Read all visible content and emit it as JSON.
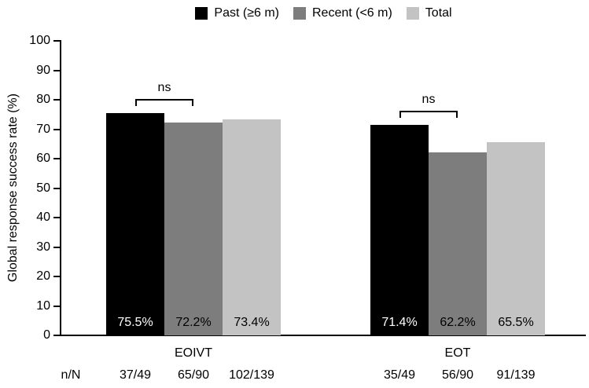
{
  "figure": {
    "background": "#ffffff"
  },
  "legend": {
    "items": [
      {
        "label": "Past (≥6 m)",
        "color": "#000000"
      },
      {
        "label": "Recent (<6 m)",
        "color": "#7d7d7d"
      },
      {
        "label": "Total",
        "color": "#c3c3c3"
      }
    ]
  },
  "chart_data": {
    "type": "bar",
    "title": "",
    "ylabel": "Global response success rate (%)",
    "ylim": [
      0,
      100
    ],
    "ytick_step": 10,
    "grid": false,
    "legend_position": "top",
    "categories": [
      "EOIVT",
      "EOT"
    ],
    "series": [
      {
        "name": "Past (≥6 m)",
        "color": "#000000",
        "label_color": "#ffffff",
        "values": [
          75.5,
          71.4
        ],
        "bar_labels": [
          "75.5%",
          "71.4%"
        ],
        "n_over_N": [
          "37/49",
          "35/49"
        ]
      },
      {
        "name": "Recent (<6 m)",
        "color": "#7d7d7d",
        "label_color": "#000000",
        "values": [
          72.2,
          62.2
        ],
        "bar_labels": [
          "72.2%",
          "62.2%"
        ],
        "n_over_N": [
          "65/90",
          "56/90"
        ]
      },
      {
        "name": "Total",
        "color": "#c3c3c3",
        "label_color": "#000000",
        "values": [
          73.4,
          65.5
        ],
        "bar_labels": [
          "73.4%",
          "65.5%"
        ],
        "n_over_N": [
          "102/139",
          "91/139"
        ]
      }
    ],
    "annotations": [
      {
        "text": "ns",
        "category": "EOIVT",
        "between": [
          "Past (≥6 m)",
          "Recent (<6 m)"
        ]
      },
      {
        "text": "ns",
        "category": "EOT",
        "between": [
          "Past (≥6 m)",
          "Recent (<6 m)"
        ]
      }
    ],
    "row_label": "n/N"
  }
}
